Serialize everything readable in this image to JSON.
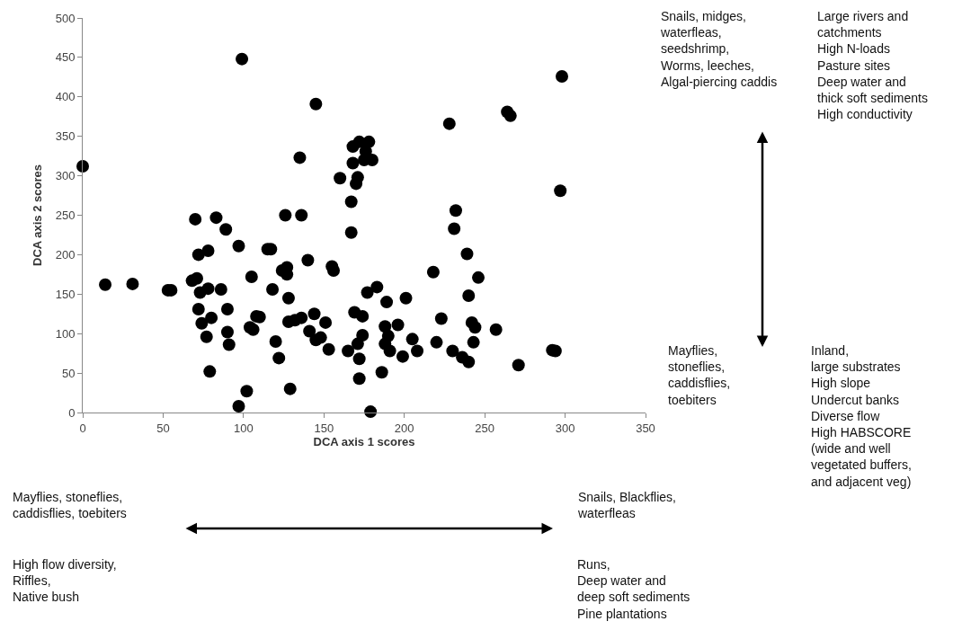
{
  "chart_data": {
    "type": "scatter",
    "xlabel": "DCA axis 1 scores",
    "ylabel": "DCA axis 2 scores",
    "x": [
      0,
      14,
      31,
      53,
      55,
      68,
      70,
      71,
      72,
      72,
      73,
      74,
      77,
      78,
      78,
      79,
      80,
      83,
      86,
      89,
      90,
      90,
      91,
      97,
      97,
      99,
      102,
      104,
      105,
      106,
      108,
      110,
      115,
      117,
      118,
      120,
      122,
      124,
      126,
      127,
      127,
      128,
      128,
      129,
      132,
      135,
      136,
      136,
      140,
      141,
      144,
      145,
      145,
      148,
      151,
      153,
      155,
      156,
      160,
      165,
      167,
      167,
      168,
      168,
      169,
      170,
      171,
      171,
      172,
      172,
      172,
      174,
      174,
      175,
      176,
      177,
      178,
      179,
      180,
      183,
      186,
      188,
      188,
      189,
      190,
      191,
      196,
      199,
      201,
      205,
      208,
      218,
      220,
      223,
      228,
      230,
      231,
      232,
      236,
      239,
      240,
      240,
      242,
      243,
      244,
      246,
      257,
      264,
      266,
      271,
      292,
      294,
      297,
      298
    ],
    "values": [
      312,
      162,
      163,
      155,
      155,
      167,
      245,
      170,
      200,
      131,
      152,
      113,
      96,
      157,
      205,
      52,
      120,
      247,
      156,
      232,
      131,
      102,
      86,
      8,
      211,
      448,
      27,
      108,
      172,
      105,
      122,
      121,
      207,
      207,
      156,
      90,
      69,
      180,
      250,
      175,
      184,
      145,
      115,
      30,
      117,
      323,
      250,
      120,
      193,
      103,
      125,
      391,
      92,
      95,
      114,
      80,
      185,
      180,
      297,
      78,
      228,
      267,
      316,
      337,
      127,
      290,
      298,
      87,
      68,
      343,
      43,
      122,
      98,
      320,
      331,
      152,
      343,
      1,
      320,
      159,
      51,
      109,
      87,
      140,
      97,
      78,
      111,
      71,
      145,
      93,
      78,
      178,
      89,
      119,
      366,
      78,
      233,
      256,
      70,
      201,
      64,
      148,
      114,
      89,
      108,
      171,
      105,
      381,
      376,
      60,
      79,
      78,
      281,
      426
    ],
    "color": "#000000",
    "marker": "circle",
    "xlim": [
      0,
      350
    ],
    "xticks": [
      0,
      50,
      100,
      150,
      200,
      250,
      300,
      350
    ],
    "ylim": [
      0,
      500
    ],
    "yticks": [
      0,
      50,
      100,
      150,
      200,
      250,
      300,
      350,
      400,
      450,
      500
    ],
    "annotations": [
      "Snails, midges,\nwaterfleas,\nseedshrimp,\nWorms, leeches,\nAlgal-piercing caddis",
      "Large rivers and\ncatchments\nHigh N-loads\nPasture sites\nDeep water and\nthick soft sediments\nHigh conductivity",
      "Mayflies,\nstoneflies,\ncaddisflies,\ntoebiters",
      "Inland,\nlarge substrates\nHigh slope\nUndercut banks\nDiverse flow\nHigh HABSCORE\n(wide and well\nvegetated buffers,\nand adjacent veg)",
      "Mayflies, stoneflies,\ncaddisflies, toebiters",
      "High flow diversity,\nRiffles,\nNative bush",
      "Snails, Blackflies,\nwaterfleas",
      "Runs,\nDeep water and\ndeep soft sediments\nPine plantations"
    ]
  }
}
